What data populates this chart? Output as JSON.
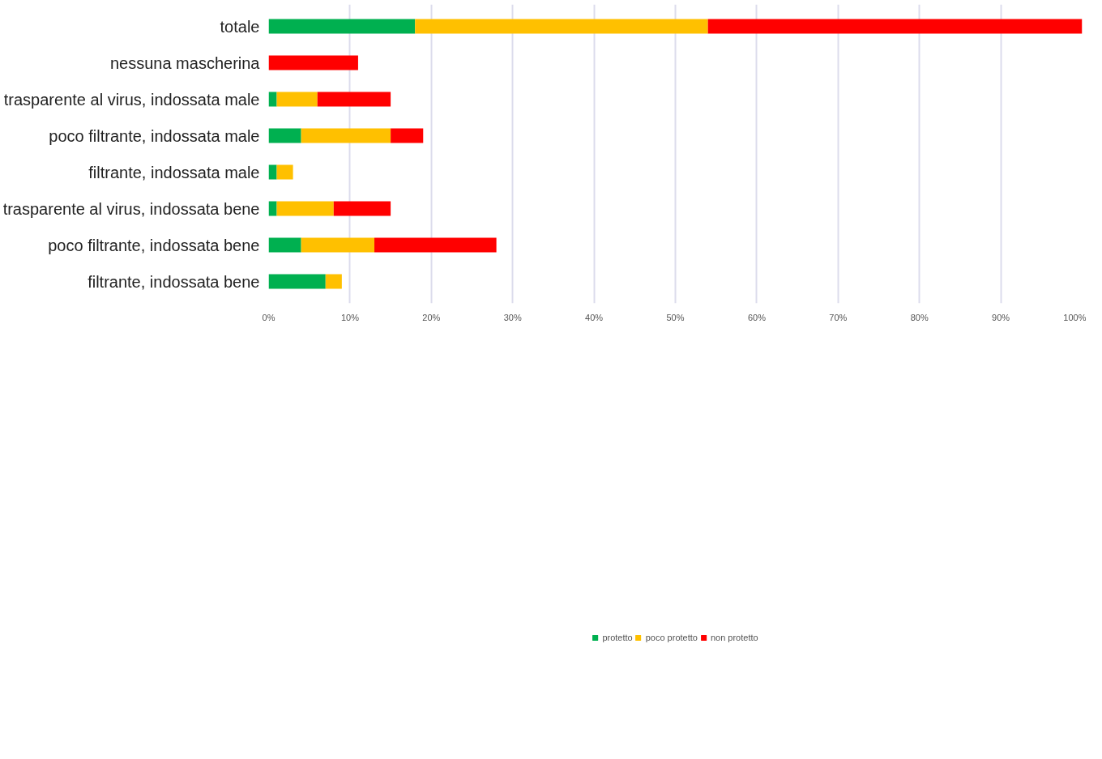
{
  "chart_data": {
    "type": "bar",
    "orientation": "horizontal",
    "stacked": true,
    "categories": [
      "totale",
      "nessuna mascherina",
      "trasparente al virus, indossata male",
      "poco filtrante, indossata male",
      "filtrante, indossata male",
      "trasparente al virus, indossata bene",
      "poco filtrante, indossata bene",
      "filtrante, indossata bene"
    ],
    "series": [
      {
        "name": "protetto",
        "color": "#00b050",
        "values": [
          18,
          null,
          1,
          4,
          1,
          1,
          4,
          7
        ]
      },
      {
        "name": "poco protetto",
        "color": "#ffc000",
        "values": [
          36,
          null,
          5,
          11,
          2,
          7,
          9,
          2
        ]
      },
      {
        "name": "non protetto",
        "color": "#ff0000",
        "values": [
          46,
          11,
          9,
          4,
          null,
          7,
          15,
          null
        ]
      }
    ],
    "xlim": [
      0,
      100
    ],
    "xticks": [
      {
        "value": 0,
        "label": "0%"
      },
      {
        "value": 10,
        "label": "10%"
      },
      {
        "value": 20,
        "label": "20%"
      },
      {
        "value": 30,
        "label": "30%"
      },
      {
        "value": 40,
        "label": "40%"
      },
      {
        "value": 50,
        "label": "50%"
      },
      {
        "value": 60,
        "label": "60%"
      },
      {
        "value": 70,
        "label": "70%"
      },
      {
        "value": 80,
        "label": "80%"
      },
      {
        "value": 90,
        "label": "90%"
      },
      {
        "value": 100,
        "label": "100%"
      }
    ],
    "grid": "x",
    "legend": "bottom"
  }
}
